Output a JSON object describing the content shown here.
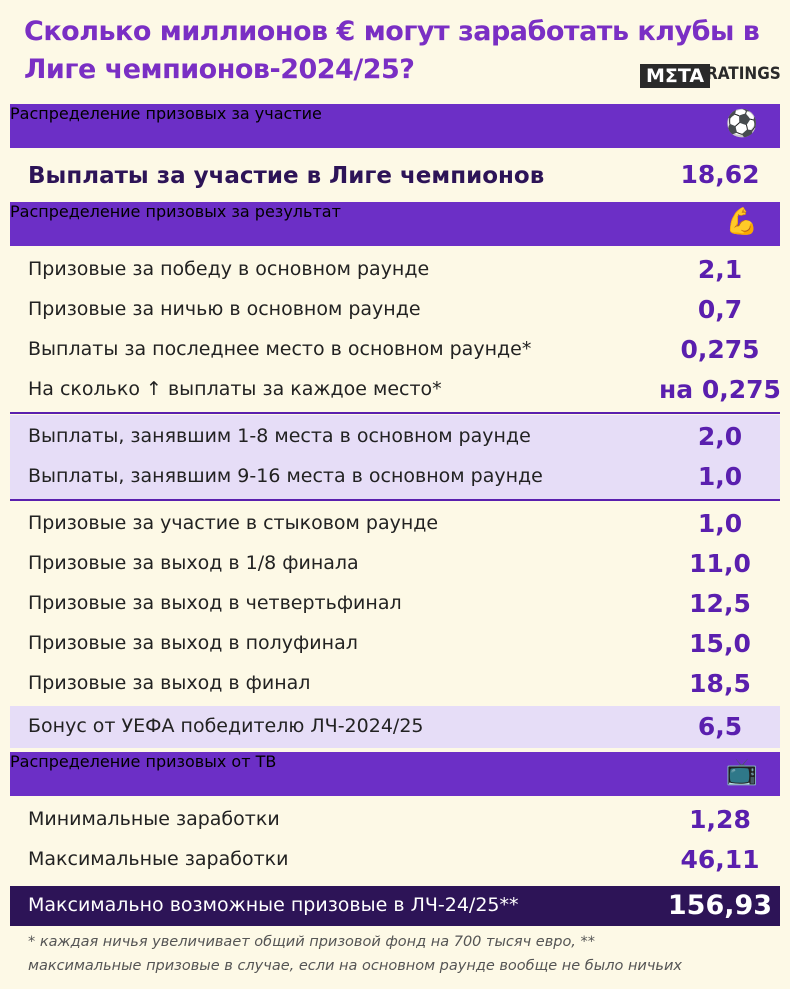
{
  "header": {
    "title": [
      "Сколько миллионов € могут заработать клубы в",
      "Лиге чемпионов-2024/25?"
    ],
    "logo": {
      "meta": "MΣTA",
      "ratings": "RATINGS"
    }
  },
  "sections": [
    {
      "title": "Распределение призовых за участие",
      "groups": [
        [
          {
            "label": "Выплаты за участие в Лиге чемпионов",
            "value": "18,62"
          }
        ]
      ]
    },
    {
      "title": "Распределение призовых за результат",
      "groups": [
        [
          {
            "label": "Призовые за победу в основном раунде",
            "value": "2,1"
          },
          {
            "label": "Призовые за ничью в основном раунде",
            "value": "0,7"
          },
          {
            "label": "Выплаты за последнее место в основном раунде*",
            "value": "0,275"
          },
          {
            "label": "На сколько ↑ выплаты за каждое место*",
            "value": "на 0,275"
          }
        ],
        [
          {
            "label": "Выплаты, занявшим 1-8 места в основном раунде",
            "value": "2,0"
          },
          {
            "label": "Выплаты, занявшим 9-16 места в основном раунде",
            "value": "1,0"
          }
        ],
        [
          {
            "label": "Призовые за участие в стыковом раунде",
            "value": "1,0"
          },
          {
            "label": "Призовые за выход в 1/8 финала",
            "value": "11,0"
          },
          {
            "label": "Призовые за выход в четвертьфинал",
            "value": "12,5"
          },
          {
            "label": "Призовые за выход в полуфинал",
            "value": "15,0"
          },
          {
            "label": "Призовые за выход в финал",
            "value": "18,5"
          }
        ],
        [
          {
            "label": "Бонус от УЕФА победителю ЛЧ-2024/25",
            "value": "6,5"
          }
        ]
      ]
    },
    {
      "title": "Распределение призовых от ТВ",
      "groups": [
        [
          {
            "label": "Минимальные заработки",
            "value": "1,28"
          },
          {
            "label": "Максимальные заработки",
            "value": "46,11"
          }
        ]
      ]
    }
  ],
  "total": {
    "label": "Максимально возможные призовые в ЛЧ-24/25**",
    "value": "156,93"
  },
  "footnote": [
    "* каждая ничья увеличивает общий призовой фонд на 700 тысяч евро, **",
    "максимальные призовые в случае, если на основном раунде вообще не было ничьих"
  ]
}
